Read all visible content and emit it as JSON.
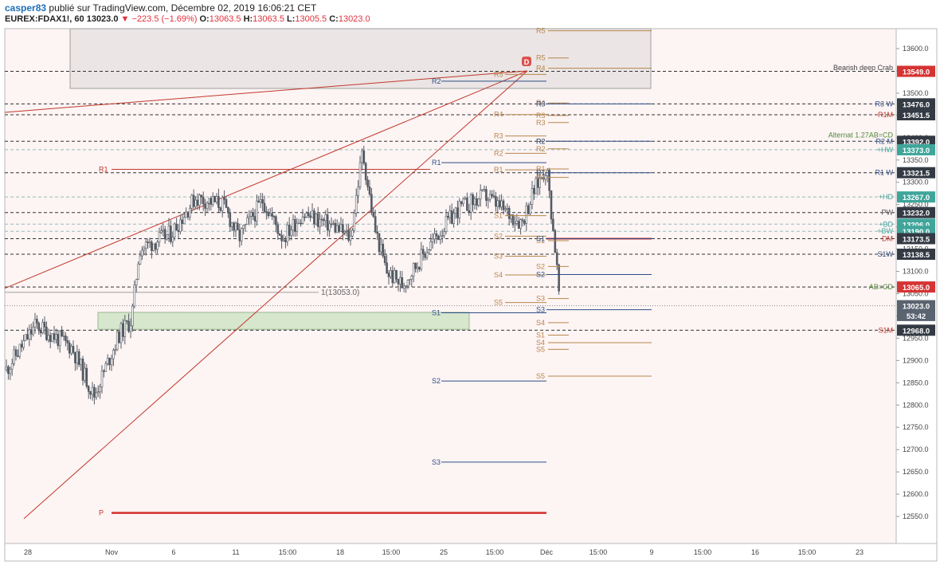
{
  "header": {
    "user": "casper83",
    "published": "publié sur TradingView.com, Décembre 02, 2019 16:06:21 CET",
    "symbol": "EUREX:FDAX1!, 60",
    "last": "13023.0",
    "change": "−223.5 (−1.69%)",
    "o_label": "O:",
    "o": "13063.5",
    "h_label": "H:",
    "h": "13063.5",
    "l_label": "L:",
    "l": "13005.5",
    "c_label": "C:",
    "c": "13023.0"
  },
  "colors": {
    "background": "#fdf4f4",
    "candle": "#555b63",
    "red_line": "#c0392b",
    "pivot_orange": "#b8864a",
    "pivot_blue": "#2d4f86",
    "teal": "#3fa59a",
    "dark": "#333a44"
  },
  "chart_data": {
    "type": "candlestick",
    "symbol": "EUREX:FDAX1!",
    "interval": "60",
    "y_ticks": [
      13600,
      13550,
      13500,
      13450,
      13400,
      13350,
      13300,
      13250,
      13200,
      13150,
      13100,
      13050,
      13000,
      12950,
      12900,
      12850,
      12800,
      12750,
      12700,
      12650,
      12600,
      12550
    ],
    "y_tick_labels": [
      "13600.0",
      "13550.0",
      "13500.0",
      "13450.0",
      "13400.0",
      "13350.0",
      "13300.0",
      "13250.0",
      "13200.0",
      "13150.0",
      "13100.0",
      "13050.0",
      "13000.0",
      "12950.0",
      "12900.0",
      "12850.0",
      "12800.0",
      "12750.0",
      "12700.0",
      "12650.0",
      "12600.0",
      "12550.0"
    ],
    "x_tick_labels": [
      "28",
      "Nov",
      "6",
      "11",
      "15:00",
      "18",
      "15:00",
      "25",
      "15:00",
      "Déc",
      "15:00",
      "9",
      "15:00",
      "16",
      "15:00",
      "23"
    ],
    "price_tags": [
      {
        "label": "13549.0",
        "color": "#d63333"
      },
      {
        "label": "13476.0",
        "color": "#333a44"
      },
      {
        "label": "13451.5",
        "color": "#333a44"
      },
      {
        "label": "13392.0",
        "color": "#333a44"
      },
      {
        "label": "13373.0",
        "color": "#3fa59a"
      },
      {
        "label": "13321.5",
        "color": "#333a44"
      },
      {
        "label": "13267.0",
        "color": "#3fa59a"
      },
      {
        "label": "13232.0",
        "color": "#333a44"
      },
      {
        "label": "13206.0",
        "color": "#3fa59a"
      },
      {
        "label": "13190.0",
        "color": "#3fa59a"
      },
      {
        "label": "13173.5",
        "color": "#333a44"
      },
      {
        "label": "13138.5",
        "color": "#333a44"
      },
      {
        "label": "13065.0",
        "color": "#d63333"
      },
      {
        "label": "13023.0",
        "color": "#5a6470"
      },
      {
        "label": "53:42",
        "color": "#5a6470"
      },
      {
        "label": "12968.0",
        "color": "#333a44"
      }
    ],
    "right_labels": [
      {
        "text": "Bearish deep Crab",
        "color": "#444444"
      },
      {
        "text": "R3 W",
        "color": "#2d4f86"
      },
      {
        "text": "R1M",
        "color": "#c0392b"
      },
      {
        "text": "Alternat 1.27AB=CD",
        "color": "#4f8a3a"
      },
      {
        "text": "R2 M",
        "color": "#2d4f86"
      },
      {
        "text": "+HW",
        "color": "#3fa59a"
      },
      {
        "text": "R1 W",
        "color": "#2d4f86"
      },
      {
        "text": "+HD",
        "color": "#3fa59a"
      },
      {
        "text": "PW",
        "color": "#555555"
      },
      {
        "text": "+BD",
        "color": "#3fa59a"
      },
      {
        "text": "+BW",
        "color": "#3fa59a"
      },
      {
        "text": "DM",
        "color": "#c0392b"
      },
      {
        "text": "S1W",
        "color": "#2d4f86"
      },
      {
        "text": "AB=CD",
        "color": "#4f8a3a"
      },
      {
        "text": "S1M",
        "color": "#c0392b"
      }
    ],
    "annotations": [
      {
        "text": "1(13053.0)",
        "color": "#666666"
      },
      {
        "text": "D",
        "color": "#d9534f"
      },
      {
        "text": "R1",
        "color": "#c0392b"
      },
      {
        "text": "P",
        "color": "#c0392b"
      }
    ],
    "pivot_labels_left_blue": [
      "R2",
      "R1",
      "S1",
      "S2",
      "S3"
    ],
    "pivot_labels_orange": [
      "R5",
      "R4",
      "R3",
      "R2",
      "R1",
      "S1",
      "S2",
      "S3",
      "S4",
      "S5"
    ],
    "pivot_labels_right_orange": [
      "R5",
      "R5",
      "R4",
      "R4",
      "R3",
      "R3",
      "R2",
      "R2",
      "R1",
      "R1",
      "S1",
      "S2",
      "S3",
      "S4",
      "S4",
      "S5",
      "S5",
      "S1"
    ],
    "pivot_labels_right_blue": [
      "R3",
      "R2",
      "R1",
      "S1",
      "S2",
      "S3"
    ],
    "range_start_price": 12880,
    "range_low": 12780,
    "range_high": 13350,
    "last_price": 13023.0
  }
}
